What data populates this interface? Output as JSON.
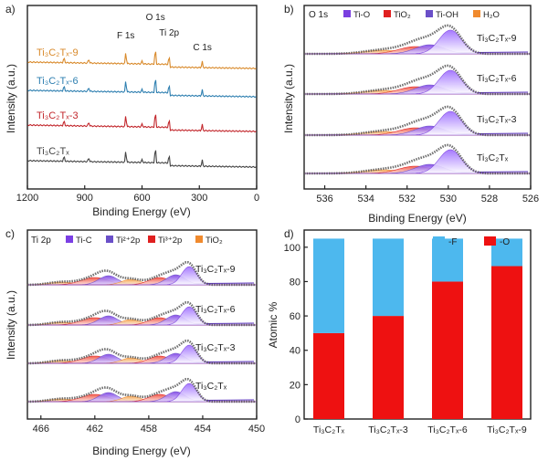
{
  "panels": {
    "a": {
      "letter": "a)",
      "xlabel": "Binding Energy (eV)",
      "ylabel": "Intensity (a.u.)"
    },
    "b": {
      "letter": "b)",
      "xlabel": "Binding Energy (eV)",
      "ylabel": "Intensity (a.u.)"
    },
    "c": {
      "letter": "c)",
      "xlabel": "Binding Energy (eV)",
      "ylabel": "Intensity (a.u.)"
    },
    "d": {
      "letter": "d)",
      "ylabel": "Atomic %"
    }
  },
  "colors": {
    "orange": "#d98a2b",
    "blue": "#2e7fb0",
    "red": "#c2262b",
    "black": "#444444",
    "purple": "#7a3fe0",
    "violet": "#8b5cf6",
    "ti_c": "#7b3fe4",
    "tio2": "#f08a2e",
    "cyan_bar": "#4db8ee",
    "red_bar": "#ee1111"
  },
  "chart_data": [
    {
      "type": "line",
      "panel": "a",
      "xlabel": "Binding Energy (eV)",
      "ylabel": "Intensity (a.u.)",
      "xlim": [
        1200,
        0
      ],
      "x_reversed": true,
      "xticks": [
        1200,
        900,
        600,
        300,
        0
      ],
      "series": [
        {
          "name": "Ti3C2Tx-9",
          "color": "#d98a2b",
          "label": "Ti₃C₂Tₓ-9"
        },
        {
          "name": "Ti3C2Tx-6",
          "color": "#2e7fb0",
          "label": "Ti₃C₂Tₓ-6"
        },
        {
          "name": "Ti3C2Tx-3",
          "color": "#c2262b",
          "label": "Ti₃C₂Tₓ-3"
        },
        {
          "name": "Ti3C2Tx",
          "color": "#444444",
          "label": "Ti₃C₂Tₓ"
        }
      ],
      "annotations": [
        {
          "text": "F 1s",
          "x": 685
        },
        {
          "text": "O 1s",
          "x": 530
        },
        {
          "text": "Ti 2p",
          "x": 458
        },
        {
          "text": "C 1s",
          "x": 284
        }
      ]
    },
    {
      "type": "line",
      "panel": "b",
      "title": "O 1s",
      "xlabel": "Binding Energy (eV)",
      "ylabel": "Intensity (a.u.)",
      "xlim": [
        537,
        526
      ],
      "x_reversed": true,
      "xticks": [
        536,
        534,
        532,
        530,
        528,
        526
      ],
      "legend": [
        {
          "name": "Ti-O",
          "color": "#7a3fe0"
        },
        {
          "name": "TiO₂",
          "color": "#e02020"
        },
        {
          "name": "Ti-OH",
          "color": "#6a4fc8"
        },
        {
          "name": "H₂O",
          "color": "#f08a2e"
        }
      ],
      "legend_position": "top",
      "series": [
        {
          "name": "Ti3C2Tx-9",
          "label": "Ti₃C₂Tₓ-9"
        },
        {
          "name": "Ti3C2Tx-6",
          "label": "Ti₃C₂Tₓ-6"
        },
        {
          "name": "Ti3C2Tx-3",
          "label": "Ti₃C₂Tₓ-3"
        },
        {
          "name": "Ti3C2Tx",
          "label": "Ti₃C₂Tₓ"
        }
      ]
    },
    {
      "type": "line",
      "panel": "c",
      "title": "Ti 2p",
      "xlabel": "Binding Energy (eV)",
      "ylabel": "Intensity (a.u.)",
      "xlim": [
        467,
        450
      ],
      "x_reversed": true,
      "xticks": [
        466,
        462,
        458,
        454,
        450
      ],
      "legend": [
        {
          "name": "Ti-C",
          "color": "#7b3fe4"
        },
        {
          "name": "Ti²⁺2p",
          "color": "#6a4fc8"
        },
        {
          "name": "Ti³⁺2p",
          "color": "#e02020"
        },
        {
          "name": "TiO₂",
          "color": "#f08a2e"
        }
      ],
      "legend_position": "top",
      "series": [
        {
          "name": "Ti3C2Tx-9",
          "label": "Ti₃C₂Tₓ-9"
        },
        {
          "name": "Ti3C2Tx-6",
          "label": "Ti₃C₂Tₓ-6"
        },
        {
          "name": "Ti3C2Tx-3",
          "label": "Ti₃C₂Tₓ-3"
        },
        {
          "name": "Ti3C2Tx",
          "label": "Ti₃C₂Tₓ"
        }
      ]
    },
    {
      "type": "bar",
      "stacked": true,
      "panel": "d",
      "ylabel": "Atomic %",
      "ylim": [
        0,
        110
      ],
      "yticks": [
        0,
        20,
        40,
        60,
        80,
        100
      ],
      "categories": [
        "Ti₃C₂Tₓ",
        "Ti₃C₂Tₓ-3",
        "Ti₃C₂Tₓ-6",
        "Ti₃C₂Tₓ-9"
      ],
      "series": [
        {
          "name": "-O",
          "color": "#ee1111",
          "values": [
            50,
            60,
            80,
            89
          ]
        },
        {
          "name": "-F",
          "color": "#4db8ee",
          "values": [
            55,
            45,
            25,
            16
          ]
        }
      ],
      "legend_position": "top-right"
    }
  ]
}
